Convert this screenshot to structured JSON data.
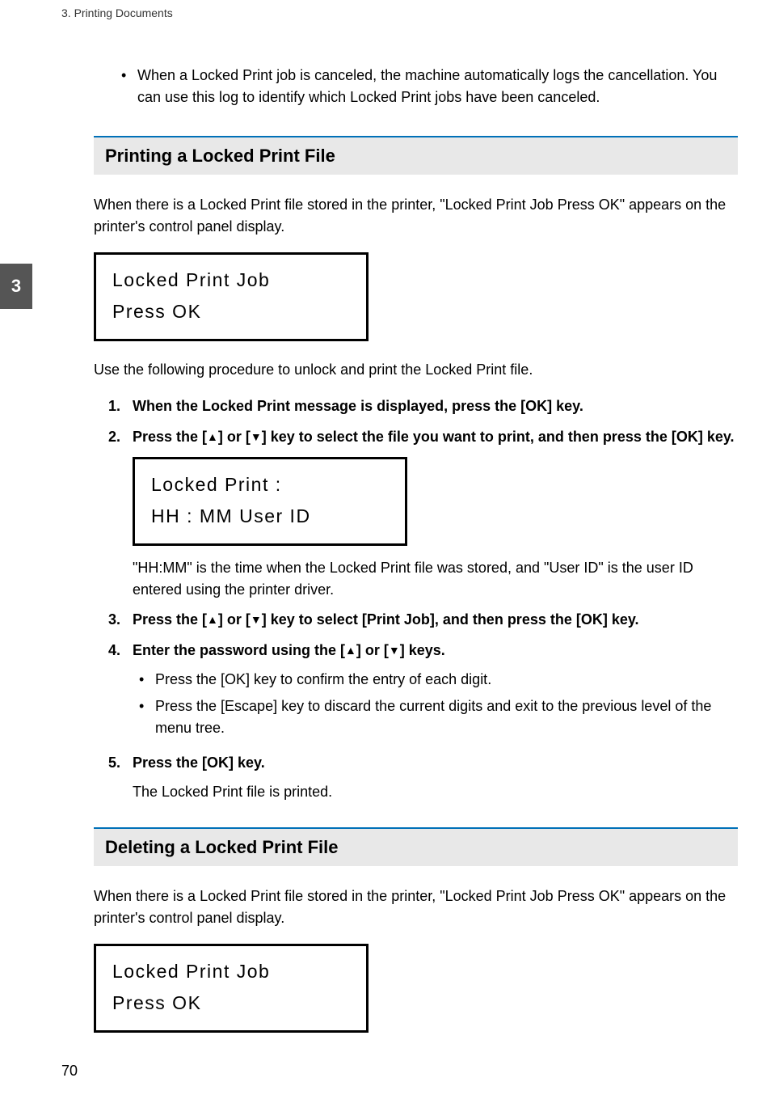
{
  "header": {
    "running": "3. Printing Documents"
  },
  "tab": {
    "label": "3"
  },
  "intro_bullet": {
    "text": "When a Locked Print job is canceled, the machine automatically logs the cancellation. You can use this log to identify which Locked Print jobs have been canceled."
  },
  "section_print": {
    "title": "Printing a Locked Print File",
    "intro": "When there is a Locked Print file stored in the printer, \"Locked Print Job Press OK\" appears on the printer's control panel display.",
    "lcd": {
      "line1": "Locked Print Job",
      "line2": "Press OK"
    },
    "lead": "Use the following procedure to unlock and print the Locked Print file.",
    "steps": {
      "s1": {
        "num": "1.",
        "text": "When the Locked Print message is displayed, press the [OK] key."
      },
      "s2": {
        "num": "2.",
        "pre": "Press the [",
        "mid1": "] or [",
        "mid2": "] key to select the file you want to print, and then press the [OK] key.",
        "lcd": {
          "line1": "Locked Print :",
          "line2": "HH : MM  User ID"
        },
        "note": "\"HH:MM\" is the time when the Locked Print file was stored, and \"User ID\" is the user ID entered using the printer driver."
      },
      "s3": {
        "num": "3.",
        "pre": "Press the [",
        "mid1": "] or [",
        "mid2": "] key to select [Print Job], and then press the [OK] key."
      },
      "s4": {
        "num": "4.",
        "pre": "Enter the password using the [",
        "mid1": "] or [",
        "mid2": "] keys.",
        "sub1": "Press the [OK] key to confirm the entry of each digit.",
        "sub2": "Press the [Escape] key to discard the current digits and exit to the previous level of the menu tree."
      },
      "s5": {
        "num": "5.",
        "text": "Press the [OK] key.",
        "note": "The Locked Print file is printed."
      }
    }
  },
  "section_delete": {
    "title": "Deleting a Locked Print File",
    "intro": "When there is a Locked Print file stored in the printer, \"Locked Print Job Press OK\" appears on the printer's control panel display.",
    "lcd": {
      "line1": "Locked Print Job",
      "line2": "Press OK"
    }
  },
  "glyph": {
    "up": "▲",
    "down": "▼",
    "bullet": "•"
  },
  "footer": {
    "page": "70"
  }
}
